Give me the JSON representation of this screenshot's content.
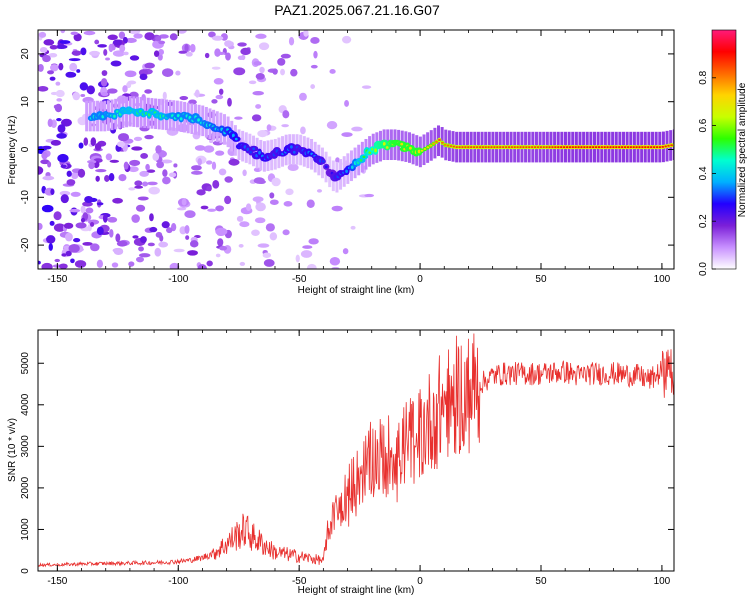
{
  "title": "PAZ1.2025.067.21.16.G07",
  "colors": {
    "snr_line": "#e8302e",
    "axis": "#000000"
  },
  "chart_data": [
    {
      "type": "heatmap",
      "xlabel": "Height of straight line (km)",
      "ylabel": "Frequency (Hz)",
      "xlim": [
        -158,
        105
      ],
      "ylim": [
        -25,
        25
      ],
      "xticks": [
        -150,
        -100,
        -50,
        0,
        50,
        100
      ],
      "yticks": [
        -20,
        -10,
        0,
        10,
        20
      ],
      "colorbar": {
        "label": "Normalized spectral amplitude",
        "range": [
          0,
          1
        ],
        "ticks": [
          0.0,
          0.2,
          0.4,
          0.6,
          0.8
        ],
        "tick_labels": [
          "0.0",
          "0.2",
          "0.4",
          "0.6",
          "0.8"
        ],
        "colormap": [
          "#ffffff",
          "#c890ff",
          "#7b1fd8",
          "#2200ff",
          "#00b0ff",
          "#00ffd0",
          "#2dff00",
          "#c8ff00",
          "#ffd400",
          "#ff6a00",
          "#ff0000",
          "#ff1a7a"
        ]
      },
      "ridge": {
        "x": [
          -130,
          -120,
          -110,
          -100,
          -90,
          -80,
          -75,
          -70,
          -65,
          -60,
          -55,
          -50,
          -45,
          -40,
          -37,
          -35,
          -30,
          -25,
          -20,
          -15,
          -10,
          -5,
          0,
          5,
          8,
          10,
          15,
          20,
          30,
          40,
          50,
          60,
          70,
          80,
          90,
          100,
          105
        ],
        "y": [
          7,
          8,
          7.5,
          7,
          6,
          4,
          1,
          0,
          -1.5,
          -1,
          0,
          0,
          -1,
          -3,
          -5,
          -6,
          -4,
          -2,
          0,
          1,
          1,
          0.5,
          -0.5,
          1,
          2,
          1,
          0.5,
          0.5,
          0.5,
          0.5,
          0.5,
          0.5,
          0.5,
          0.5,
          0.5,
          0.5,
          1
        ],
        "amplitude": [
          0.45,
          0.5,
          0.5,
          0.45,
          0.45,
          0.4,
          0.35,
          0.3,
          0.35,
          0.3,
          0.35,
          0.3,
          0.35,
          0.3,
          0.25,
          0.3,
          0.35,
          0.5,
          0.6,
          0.65,
          0.7,
          0.7,
          0.7,
          0.75,
          0.85,
          0.8,
          0.85,
          0.85,
          0.85,
          0.85,
          0.85,
          0.9,
          0.9,
          0.9,
          0.9,
          0.9,
          0.85
        ]
      }
    },
    {
      "type": "line",
      "xlabel": "Height of straight line (km)",
      "ylabel": "SNR (10 * v/v)",
      "xlim": [
        -158,
        105
      ],
      "ylim": [
        0,
        5800
      ],
      "xticks": [
        -150,
        -100,
        -50,
        0,
        50,
        100
      ],
      "yticks": [
        0,
        1000,
        2000,
        3000,
        4000,
        5000
      ],
      "series": [
        {
          "x": [
            -158,
            -150,
            -140,
            -130,
            -120,
            -110,
            -100,
            -95,
            -90,
            -85,
            -80,
            -75,
            -72,
            -70,
            -65,
            -60,
            -55,
            -50,
            -45,
            -40,
            -38,
            -35,
            -30,
            -25,
            -20,
            -15,
            -10,
            -5,
            0,
            5,
            10,
            15,
            20,
            25,
            30,
            35,
            40,
            50,
            60,
            65,
            70,
            80,
            90,
            95,
            100,
            103,
            105
          ],
          "y": [
            150,
            150,
            170,
            180,
            190,
            200,
            230,
            260,
            320,
            450,
            650,
            900,
            1000,
            850,
            650,
            450,
            400,
            350,
            300,
            250,
            1000,
            1400,
            1900,
            2300,
            2700,
            2800,
            2900,
            3100,
            3300,
            3700,
            4000,
            4200,
            4300,
            4500,
            4700,
            4750,
            4750,
            4750,
            4800,
            4700,
            4750,
            4750,
            4700,
            4600,
            4800,
            5000,
            4400
          ]
        }
      ]
    }
  ]
}
